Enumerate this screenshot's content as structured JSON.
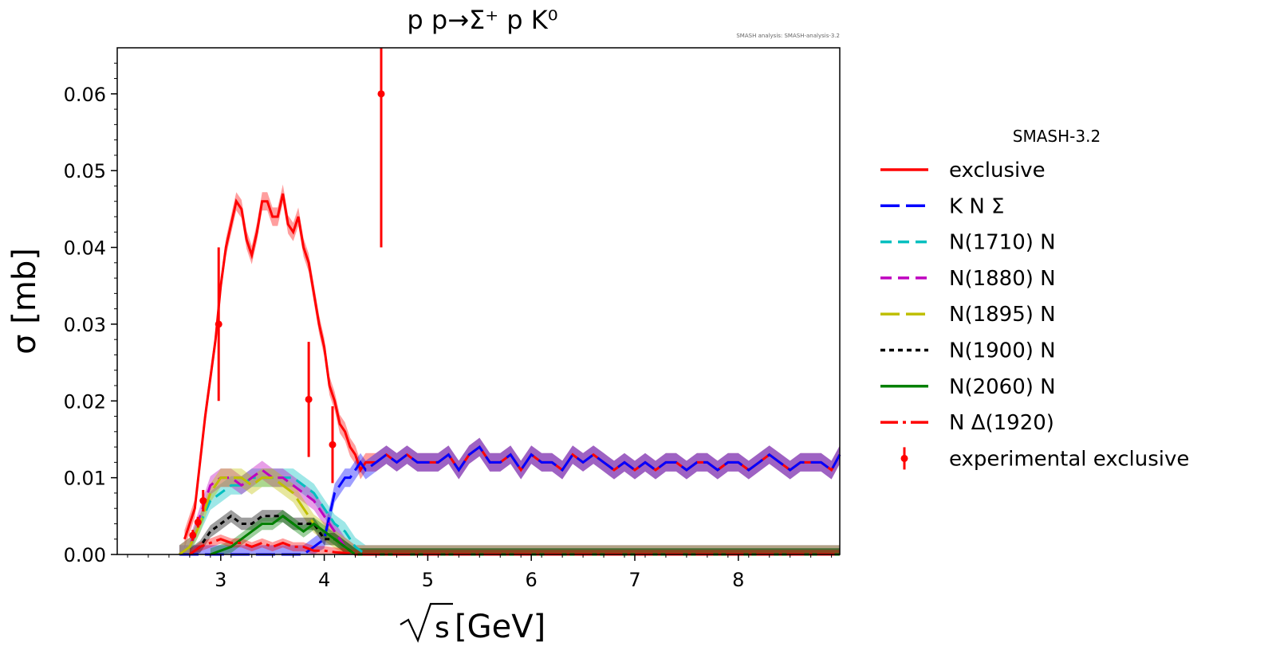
{
  "chart_data": {
    "type": "line",
    "title": "p p→Σ⁺ p K⁰",
    "watermark": "SMASH analysis: SMASH-analysis-3.2",
    "xlabel_radical": "s",
    "xlabel_unit": "[GeV]",
    "ylabel": "σ [mb]",
    "xlim": [
      2.0,
      8.98
    ],
    "ylim": [
      0.0,
      0.066
    ],
    "x_ticks": [
      3,
      4,
      5,
      6,
      7,
      8
    ],
    "y_ticks": [
      0.0,
      0.01,
      0.02,
      0.03,
      0.04,
      0.05,
      0.06
    ],
    "y_tick_labels": [
      "0.00",
      "0.01",
      "0.02",
      "0.03",
      "0.04",
      "0.05",
      "0.06"
    ],
    "legend_title": "SMASH-3.2",
    "legend_position": "outside-right",
    "series": [
      {
        "name": "exclusive",
        "color": "#ff0000",
        "style": "solid",
        "band": true,
        "x": [
          2.65,
          2.75,
          2.85,
          2.95,
          3.0,
          3.05,
          3.1,
          3.15,
          3.2,
          3.25,
          3.3,
          3.35,
          3.4,
          3.45,
          3.5,
          3.55,
          3.6,
          3.65,
          3.7,
          3.75,
          3.8,
          3.85,
          3.9,
          3.95,
          4.0,
          4.05,
          4.1,
          4.15,
          4.2,
          4.25,
          4.3,
          4.35,
          4.4,
          4.5,
          4.6,
          4.7,
          4.8,
          4.9,
          5.0,
          5.1,
          5.2,
          5.3,
          5.4,
          5.5,
          5.6,
          5.7,
          5.8,
          5.9,
          6.0,
          6.1,
          6.2,
          6.3,
          6.4,
          6.5,
          6.6,
          6.7,
          6.8,
          6.9,
          7.0,
          7.1,
          7.2,
          7.3,
          7.4,
          7.5,
          7.6,
          7.7,
          7.8,
          7.9,
          8.0,
          8.1,
          8.2,
          8.3,
          8.4,
          8.5,
          8.6,
          8.7,
          8.8,
          8.9,
          8.98
        ],
        "y": [
          0.002,
          0.006,
          0.018,
          0.028,
          0.035,
          0.04,
          0.043,
          0.046,
          0.045,
          0.041,
          0.039,
          0.042,
          0.046,
          0.046,
          0.044,
          0.044,
          0.047,
          0.043,
          0.042,
          0.044,
          0.04,
          0.038,
          0.034,
          0.03,
          0.027,
          0.022,
          0.02,
          0.017,
          0.016,
          0.014,
          0.013,
          0.011,
          0.012,
          0.012,
          0.013,
          0.012,
          0.013,
          0.012,
          0.012,
          0.012,
          0.013,
          0.011,
          0.013,
          0.014,
          0.012,
          0.012,
          0.013,
          0.011,
          0.013,
          0.012,
          0.012,
          0.011,
          0.013,
          0.012,
          0.013,
          0.012,
          0.011,
          0.012,
          0.011,
          0.012,
          0.011,
          0.012,
          0.012,
          0.011,
          0.012,
          0.012,
          0.011,
          0.012,
          0.012,
          0.011,
          0.012,
          0.013,
          0.012,
          0.011,
          0.012,
          0.012,
          0.012,
          0.011,
          0.013
        ],
        "band_width": 0.0012
      },
      {
        "name": "K N Σ",
        "color": "#0000ff",
        "style": "dashed-long",
        "band": true,
        "x": [
          2.6,
          3.8,
          3.9,
          4.0,
          4.05,
          4.1,
          4.15,
          4.2,
          4.25,
          4.3,
          4.35,
          4.4,
          4.5,
          4.6,
          4.7,
          4.8,
          4.9,
          5.0,
          5.1,
          5.2,
          5.3,
          5.4,
          5.5,
          5.6,
          5.7,
          5.8,
          5.9,
          6.0,
          6.1,
          6.2,
          6.3,
          6.4,
          6.5,
          6.6,
          6.7,
          6.8,
          6.9,
          7.0,
          7.1,
          7.2,
          7.3,
          7.4,
          7.5,
          7.6,
          7.7,
          7.8,
          7.9,
          8.0,
          8.1,
          8.2,
          8.3,
          8.4,
          8.5,
          8.6,
          8.7,
          8.8,
          8.9,
          8.98
        ],
        "y": [
          0.0,
          0.0,
          0.001,
          0.002,
          0.005,
          0.008,
          0.009,
          0.01,
          0.01,
          0.011,
          0.012,
          0.011,
          0.012,
          0.013,
          0.012,
          0.013,
          0.012,
          0.012,
          0.012,
          0.013,
          0.011,
          0.013,
          0.014,
          0.012,
          0.012,
          0.013,
          0.011,
          0.013,
          0.012,
          0.012,
          0.011,
          0.013,
          0.012,
          0.013,
          0.012,
          0.011,
          0.012,
          0.011,
          0.012,
          0.011,
          0.012,
          0.012,
          0.011,
          0.012,
          0.012,
          0.011,
          0.012,
          0.012,
          0.011,
          0.012,
          0.013,
          0.012,
          0.011,
          0.012,
          0.012,
          0.012,
          0.011,
          0.013
        ],
        "band_width": 0.0012
      },
      {
        "name": "N(1710) N",
        "color": "#00bfbf",
        "style": "dashed",
        "band": true,
        "x": [
          2.6,
          2.7,
          2.8,
          2.9,
          3.0,
          3.1,
          3.2,
          3.3,
          3.4,
          3.5,
          3.6,
          3.7,
          3.8,
          3.9,
          4.0,
          4.1,
          4.2,
          4.3,
          4.4,
          4.5,
          8.98
        ],
        "y": [
          0.0,
          0.001,
          0.004,
          0.007,
          0.008,
          0.009,
          0.009,
          0.01,
          0.01,
          0.01,
          0.01,
          0.01,
          0.009,
          0.008,
          0.006,
          0.004,
          0.003,
          0.001,
          0.0,
          0.0,
          0.0
        ],
        "band_width": 0.0012
      },
      {
        "name": "N(1880) N",
        "color": "#bf00bf",
        "style": "dashed",
        "band": true,
        "x": [
          2.6,
          2.7,
          2.8,
          2.9,
          3.0,
          3.1,
          3.2,
          3.3,
          3.4,
          3.5,
          3.6,
          3.7,
          3.8,
          3.9,
          4.0,
          4.1,
          4.2,
          4.3,
          4.4,
          8.98
        ],
        "y": [
          0.0,
          0.001,
          0.005,
          0.009,
          0.01,
          0.01,
          0.009,
          0.01,
          0.011,
          0.01,
          0.01,
          0.009,
          0.008,
          0.007,
          0.005,
          0.003,
          0.001,
          0.0,
          0.0,
          0.0
        ],
        "band_width": 0.0012
      },
      {
        "name": "N(1895) N",
        "color": "#bfbf00",
        "style": "dashed-long",
        "band": true,
        "x": [
          2.6,
          2.7,
          2.8,
          2.9,
          3.0,
          3.1,
          3.2,
          3.3,
          3.4,
          3.5,
          3.6,
          3.7,
          3.8,
          3.9,
          4.0,
          4.1,
          4.2,
          4.3,
          8.98
        ],
        "y": [
          0.0,
          0.001,
          0.004,
          0.008,
          0.01,
          0.01,
          0.01,
          0.009,
          0.01,
          0.01,
          0.009,
          0.008,
          0.006,
          0.004,
          0.003,
          0.002,
          0.001,
          0.0,
          0.0
        ],
        "band_width": 0.0012
      },
      {
        "name": "N(1900) N",
        "color": "#000000",
        "style": "dotted",
        "band": true,
        "x": [
          2.7,
          2.8,
          2.9,
          3.0,
          3.1,
          3.2,
          3.3,
          3.4,
          3.5,
          3.6,
          3.7,
          3.8,
          3.9,
          4.0,
          4.1,
          4.2,
          4.3,
          8.98
        ],
        "y": [
          0.0,
          0.001,
          0.003,
          0.004,
          0.005,
          0.004,
          0.004,
          0.005,
          0.005,
          0.005,
          0.004,
          0.004,
          0.004,
          0.002,
          0.002,
          0.001,
          0.0,
          0.0
        ],
        "band_width": 0.0008
      },
      {
        "name": "N(2060) N",
        "color": "#008000",
        "style": "solid",
        "band": true,
        "x": [
          2.9,
          3.0,
          3.1,
          3.2,
          3.3,
          3.4,
          3.5,
          3.6,
          3.7,
          3.8,
          3.9,
          4.0,
          4.1,
          4.2,
          4.3,
          8.98
        ],
        "y": [
          0.0,
          0.0005,
          0.001,
          0.002,
          0.003,
          0.004,
          0.004,
          0.005,
          0.004,
          0.003,
          0.004,
          0.003,
          0.002,
          0.001,
          0.0,
          0.0
        ],
        "band_width": 0.0008
      },
      {
        "name": "N Δ(1920)",
        "color": "#ff0000",
        "style": "dashdot",
        "band": true,
        "x": [
          2.7,
          2.8,
          2.9,
          3.0,
          3.1,
          3.2,
          3.3,
          3.4,
          3.5,
          3.6,
          3.7,
          3.8,
          3.9,
          4.0,
          4.1,
          4.2,
          4.3,
          8.98
        ],
        "y": [
          0.0,
          0.001,
          0.0015,
          0.002,
          0.0015,
          0.0015,
          0.001,
          0.0015,
          0.001,
          0.0015,
          0.001,
          0.001,
          0.0005,
          0.0005,
          0.0003,
          0.0002,
          0.0,
          0.0
        ],
        "band_width": 0.0006
      }
    ],
    "experimental": {
      "name": "experimental exclusive",
      "color": "#ff0000",
      "points": [
        {
          "x": 2.73,
          "y": 0.0025,
          "err": 0.0007
        },
        {
          "x": 2.78,
          "y": 0.0042,
          "err": 0.0007
        },
        {
          "x": 2.83,
          "y": 0.007,
          "err": 0.0014
        },
        {
          "x": 2.98,
          "y": 0.03,
          "err": 0.01
        },
        {
          "x": 3.85,
          "y": 0.0202,
          "err": 0.0075
        },
        {
          "x": 4.08,
          "y": 0.0143,
          "err": 0.005
        },
        {
          "x": 4.55,
          "y": 0.06,
          "err": 0.02
        }
      ]
    }
  }
}
